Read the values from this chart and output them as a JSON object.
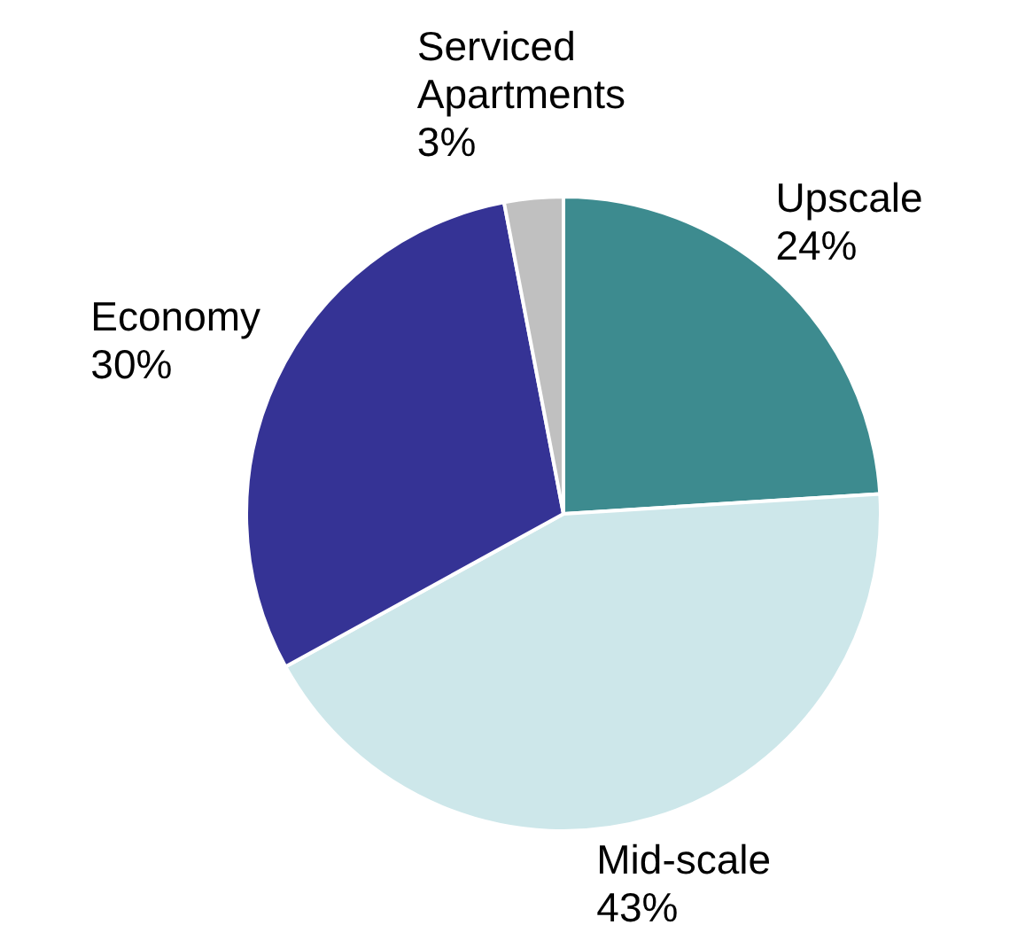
{
  "chart_data": {
    "type": "pie",
    "categories": [
      "Upscale",
      "Mid-scale",
      "Economy",
      "Serviced Apartments"
    ],
    "values": [
      24,
      43,
      30,
      3
    ],
    "colors": [
      "#3d8b8f",
      "#cde7ea",
      "#353395",
      "#c0c0c0"
    ],
    "value_labels": [
      "24%",
      "43%",
      "30%",
      "3%"
    ],
    "legend": false
  }
}
